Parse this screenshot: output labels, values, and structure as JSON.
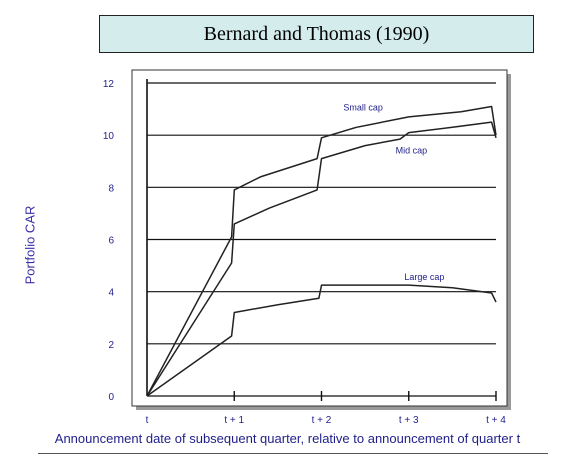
{
  "chart_data": {
    "type": "line",
    "title": "Bernard and Thomas (1990)",
    "xlabel": "Announcement date of subsequent quarter, relative to announcement of quarter t",
    "ylabel": "Portfolio CAR",
    "categories": [
      "t",
      "t + 1",
      "t + 2",
      "t + 3",
      "t + 4"
    ],
    "xlim": [
      0,
      4
    ],
    "ylim": [
      0,
      12
    ],
    "yticks": [
      0,
      2,
      4,
      6,
      8,
      10,
      12
    ],
    "grid": "horizontal",
    "series": [
      {
        "name": "Small cap",
        "color": "#222222",
        "points": [
          [
            0,
            0
          ],
          [
            0.97,
            6.1
          ],
          [
            1.0,
            7.9
          ],
          [
            1.3,
            8.4
          ],
          [
            1.95,
            9.1
          ],
          [
            2.0,
            9.9
          ],
          [
            2.4,
            10.3
          ],
          [
            3.0,
            10.7
          ],
          [
            3.6,
            10.9
          ],
          [
            3.95,
            11.1
          ],
          [
            4.0,
            10.0
          ]
        ]
      },
      {
        "name": "Mid cap",
        "color": "#222222",
        "points": [
          [
            0,
            0
          ],
          [
            0.97,
            5.1
          ],
          [
            1.0,
            6.6
          ],
          [
            1.4,
            7.2
          ],
          [
            1.95,
            7.9
          ],
          [
            2.0,
            9.1
          ],
          [
            2.5,
            9.6
          ],
          [
            2.9,
            9.85
          ],
          [
            3.0,
            10.1
          ],
          [
            3.5,
            10.3
          ],
          [
            3.95,
            10.5
          ],
          [
            4.0,
            9.9
          ]
        ]
      },
      {
        "name": "Large cap",
        "color": "#222222",
        "points": [
          [
            0,
            0
          ],
          [
            0.97,
            2.3
          ],
          [
            1.0,
            3.2
          ],
          [
            1.5,
            3.5
          ],
          [
            1.97,
            3.75
          ],
          [
            2.0,
            4.25
          ],
          [
            3.0,
            4.25
          ],
          [
            3.5,
            4.15
          ],
          [
            3.95,
            3.95
          ],
          [
            4.0,
            3.6
          ]
        ]
      }
    ],
    "annotations": [
      {
        "text": "Small cap",
        "x": 2.25,
        "y": 10.95
      },
      {
        "text": "Mid cap",
        "x": 2.85,
        "y": 9.3
      },
      {
        "text": "Large cap",
        "x": 2.95,
        "y": 4.45
      }
    ]
  }
}
